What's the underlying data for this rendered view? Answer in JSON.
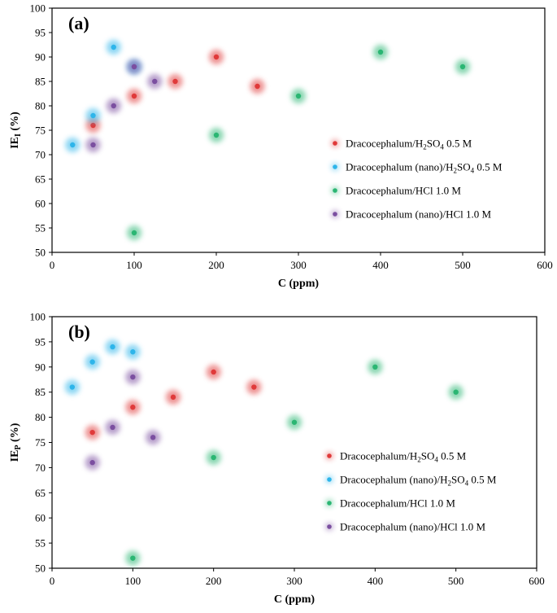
{
  "chart_data": [
    {
      "type": "scatter",
      "panel_label": "(a)",
      "xlabel": "C (ppm)",
      "ylabel": "IE",
      "ylabel_sub": "I",
      "ylabel_unit": "(%)",
      "xlim": [
        0,
        600
      ],
      "ylim": [
        50,
        100
      ],
      "x_ticks": [
        "0",
        "100",
        "200",
        "300",
        "400",
        "500",
        "600"
      ],
      "y_ticks": [
        "50",
        "55",
        "60",
        "65",
        "70",
        "75",
        "80",
        "85",
        "90",
        "95",
        "100"
      ],
      "grid": false,
      "legend_position": "center-right",
      "series": [
        {
          "name": "Dracocephalum/H2SO4 0.5 M",
          "label_main": "Dracocephalum/H",
          "label_sub1": "2",
          "label_mid": "SO",
          "label_sub2": "4",
          "label_tail": " 0.5 M",
          "color": "#e03a3a",
          "points": [
            [
              50,
              76
            ],
            [
              100,
              82
            ],
            [
              150,
              85
            ],
            [
              200,
              90
            ],
            [
              250,
              84
            ]
          ]
        },
        {
          "name": "Dracocephalum (nano)/H2SO4 0.5 M",
          "label_main": "Dracocephalum (nano)/H",
          "label_sub1": "2",
          "label_mid": "SO",
          "label_sub2": "4",
          "label_tail": " 0.5 M",
          "color": "#2eb5ea",
          "points": [
            [
              25,
              72
            ],
            [
              50,
              78
            ],
            [
              75,
              92
            ],
            [
              100,
              88
            ]
          ]
        },
        {
          "name": "Dracocephalum/HCl 1.0 M",
          "label_main": "Dracocephalum/HCl 1.0 M",
          "label_sub1": "",
          "label_mid": "",
          "label_sub2": "",
          "label_tail": "",
          "color": "#2bb673",
          "points": [
            [
              100,
              54
            ],
            [
              200,
              74
            ],
            [
              300,
              82
            ],
            [
              400,
              91
            ],
            [
              500,
              88
            ]
          ]
        },
        {
          "name": "Dracocephalum (nano)/HCl 1.0 M",
          "label_main": "Dracocephalum (nano)/HCl 1.0 M",
          "label_sub1": "",
          "label_mid": "",
          "label_sub2": "",
          "label_tail": "",
          "color": "#7b4fa0",
          "points": [
            [
              50,
              72
            ],
            [
              75,
              80
            ],
            [
              100,
              88
            ],
            [
              125,
              85
            ]
          ]
        }
      ]
    },
    {
      "type": "scatter",
      "panel_label": "(b)",
      "xlabel": "C (ppm)",
      "ylabel": "IE",
      "ylabel_sub": "P",
      "ylabel_unit": "(%)",
      "xlim": [
        0,
        600
      ],
      "ylim": [
        50,
        100
      ],
      "x_ticks": [
        "0",
        "100",
        "200",
        "300",
        "400",
        "500",
        "600"
      ],
      "y_ticks": [
        "50",
        "55",
        "60",
        "65",
        "70",
        "75",
        "80",
        "85",
        "90",
        "95",
        "100"
      ],
      "grid": false,
      "legend_position": "center-right",
      "series": [
        {
          "name": "Dracocephalum/H2SO4 0.5 M",
          "label_main": "Dracocephalum/H",
          "label_sub1": "2",
          "label_mid": "SO",
          "label_sub2": "4",
          "label_tail": " 0.5 M",
          "color": "#e03a3a",
          "points": [
            [
              50,
              77
            ],
            [
              100,
              82
            ],
            [
              150,
              84
            ],
            [
              200,
              89
            ],
            [
              250,
              86
            ]
          ]
        },
        {
          "name": "Dracocephalum (nano)/H2SO4 0.5 M",
          "label_main": "Dracocephalum (nano)/H",
          "label_sub1": "2",
          "label_mid": "SO",
          "label_sub2": "4",
          "label_tail": " 0.5 M",
          "color": "#2eb5ea",
          "points": [
            [
              25,
              86
            ],
            [
              50,
              91
            ],
            [
              75,
              94
            ],
            [
              100,
              93
            ]
          ]
        },
        {
          "name": "Dracocephalum/HCl 1.0 M",
          "label_main": "Dracocephalum/HCl 1.0 M",
          "label_sub1": "",
          "label_mid": "",
          "label_sub2": "",
          "label_tail": "",
          "color": "#2bb673",
          "points": [
            [
              100,
              52
            ],
            [
              200,
              72
            ],
            [
              300,
              79
            ],
            [
              400,
              90
            ],
            [
              500,
              85
            ]
          ]
        },
        {
          "name": "Dracocephalum (nano)/HCl 1.0 M",
          "label_main": "Dracocephalum (nano)/HCl 1.0 M",
          "label_sub1": "",
          "label_mid": "",
          "label_sub2": "",
          "label_tail": "",
          "color": "#7b4fa0",
          "points": [
            [
              50,
              71
            ],
            [
              75,
              78
            ],
            [
              100,
              88
            ],
            [
              125,
              76
            ]
          ]
        }
      ]
    }
  ]
}
